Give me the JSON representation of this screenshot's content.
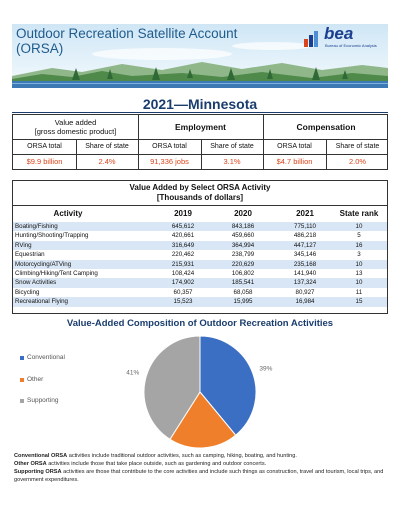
{
  "header": {
    "title_line1": "Outdoor Recreation Satellite Account",
    "title_line2": "(ORSA)",
    "logo_word": "bea",
    "logo_tag": "Bureau of Economic Analysis"
  },
  "state_title": "2021—Minnesota",
  "summary": {
    "value_added_label": "Value added",
    "value_added_sub": "[gross domestic product]",
    "employment_label": "Employment",
    "compensation_label": "Compensation",
    "orsa_total_label": "ORSA total",
    "share_label": "Share of state",
    "value_added_total": "$9.9 billion",
    "value_added_share": "2.4%",
    "employment_total": "91,336 jobs",
    "employment_share": "3.1%",
    "compensation_total": "$4.7 billion",
    "compensation_share": "2.0%"
  },
  "activity_table": {
    "title": "Value Added by Select ORSA Activity",
    "subtitle": "[Thousands of dollars]",
    "columns": [
      "Activity",
      "2019",
      "2020",
      "2021",
      "State rank"
    ],
    "rows": [
      {
        "activity": "Boating/Fishing",
        "y2019": "645,612",
        "y2020": "843,186",
        "y2021": "775,110",
        "rank": "10"
      },
      {
        "activity": "Hunting/Shooting/Trapping",
        "y2019": "420,661",
        "y2020": "459,660",
        "y2021": "486,218",
        "rank": "5"
      },
      {
        "activity": "RVing",
        "y2019": "316,649",
        "y2020": "364,994",
        "y2021": "447,127",
        "rank": "16"
      },
      {
        "activity": "Equestrian",
        "y2019": "220,462",
        "y2020": "238,799",
        "y2021": "345,146",
        "rank": "3"
      },
      {
        "activity": "Motorcycling/ATVing",
        "y2019": "215,931",
        "y2020": "220,629",
        "y2021": "235,168",
        "rank": "10"
      },
      {
        "activity": "Climbing/Hiking/Tent Camping",
        "y2019": "108,424",
        "y2020": "106,802",
        "y2021": "141,940",
        "rank": "13"
      },
      {
        "activity": "Snow Activities",
        "y2019": "174,902",
        "y2020": "185,541",
        "y2021": "137,324",
        "rank": "10"
      },
      {
        "activity": "Bicycling",
        "y2019": "60,357",
        "y2020": "68,058",
        "y2021": "80,927",
        "rank": "11"
      },
      {
        "activity": "Recreational Flying",
        "y2019": "15,523",
        "y2020": "15,995",
        "y2021": "16,984",
        "rank": "15"
      }
    ]
  },
  "pie": {
    "title": "Value-Added Composition of Outdoor Recreation Activities",
    "colors": {
      "conventional": "#3b6fc4",
      "other": "#ef7f2a",
      "supporting": "#a5a5a5"
    }
  },
  "chart_data": {
    "type": "pie",
    "title": "Value-Added Composition of Outdoor Recreation Activities",
    "categories": [
      "Conventional",
      "Other",
      "Supporting"
    ],
    "values": [
      39,
      20,
      41
    ],
    "labels": [
      "39%",
      "20%",
      "41%"
    ],
    "legend": "left"
  },
  "notes": {
    "conventional_term": "Conventional ORSA",
    "conventional_text": " activities include traditional outdoor activities, such as camping, hiking, boating, and hunting.",
    "other_term": "Other ORSA",
    "other_text": " activities include those that take place outside, such as gardening and outdoor concerts.",
    "supporting_term": "Supporting ORSA",
    "supporting_text": " activities are those that contribute to the core activities and include such things as construction, travel and tourism, local trips, and government expenditures."
  }
}
